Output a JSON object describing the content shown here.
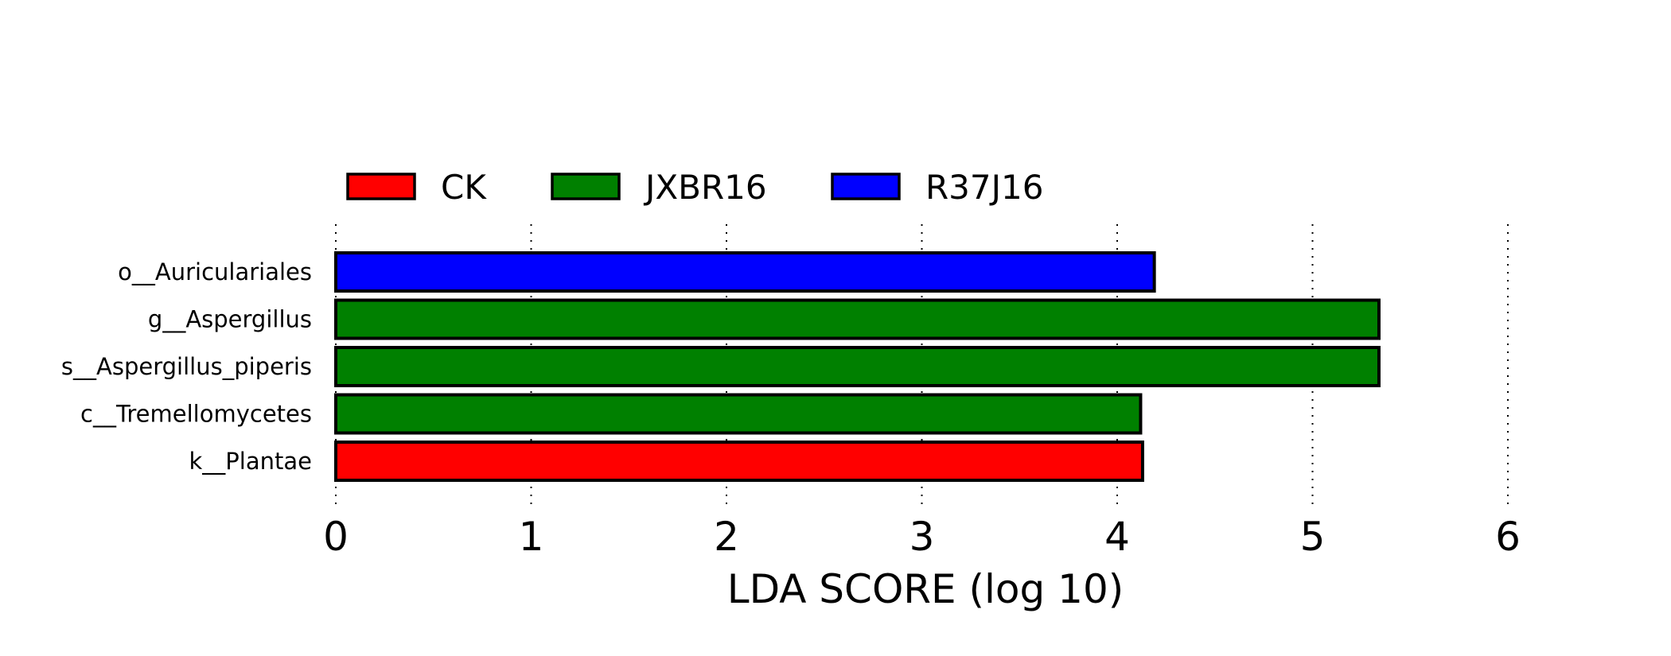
{
  "chart_data": {
    "type": "bar",
    "orientation": "horizontal",
    "xlabel": "LDA SCORE (log 10)",
    "xlim": [
      0,
      6
    ],
    "xticks": [
      "0",
      "1",
      "2",
      "3",
      "4",
      "5",
      "6"
    ],
    "grid": "vertical dotted",
    "legend_position": "top-left",
    "legend": [
      {
        "name": "CK",
        "color": "#ff0000"
      },
      {
        "name": "JXBR16",
        "color": "#008000"
      },
      {
        "name": "R37J16",
        "color": "#0000ff"
      }
    ],
    "bars": [
      {
        "label": "o__Auriculariales",
        "value": 4.19,
        "group": "R37J16"
      },
      {
        "label": "g__Aspergillus",
        "value": 5.34,
        "group": "JXBR16"
      },
      {
        "label": "s__Aspergillus_piperis",
        "value": 5.34,
        "group": "JXBR16"
      },
      {
        "label": "c__Tremellomycetes",
        "value": 4.12,
        "group": "JXBR16"
      },
      {
        "label": "k__Plantae",
        "value": 4.13,
        "group": "CK"
      }
    ]
  }
}
